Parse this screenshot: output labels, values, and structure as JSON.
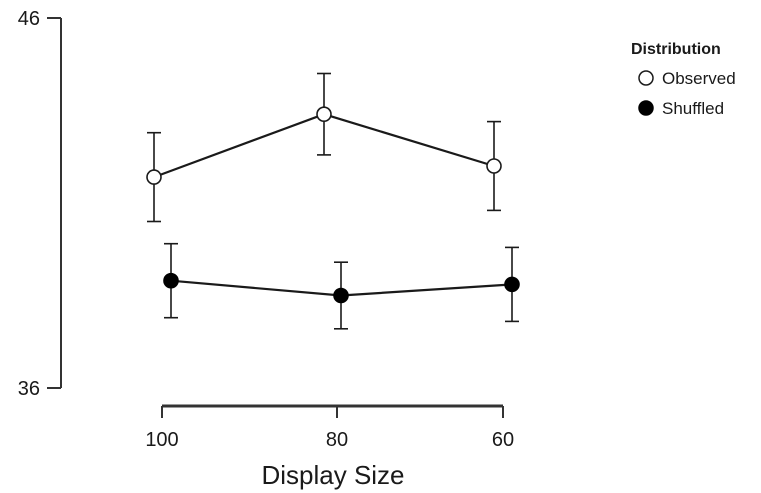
{
  "chart_data": {
    "type": "line",
    "title": "",
    "xlabel": "Display Size",
    "ylabel": "",
    "categories": [
      "100",
      "80",
      "60"
    ],
    "y_ticks": [
      "46",
      "36"
    ],
    "ylim": [
      36,
      46
    ],
    "legend": {
      "title": "Distribution",
      "placement": "top-right"
    },
    "series": [
      {
        "name": "Observed",
        "marker": "open-circle",
        "values": [
          41.7,
          43.4,
          42.0
        ],
        "error_low": [
          40.5,
          42.3,
          40.8
        ],
        "error_high": [
          42.9,
          44.5,
          43.2
        ]
      },
      {
        "name": "Shuffled",
        "marker": "filled-circle",
        "values": [
          38.9,
          38.5,
          38.8
        ],
        "error_low": [
          37.9,
          37.6,
          37.8
        ],
        "error_high": [
          39.9,
          39.4,
          39.8
        ]
      }
    ],
    "colors": {
      "line": "#1a1a1a",
      "axis": "#333333",
      "open_fill": "#ffffff",
      "filled": "#000000"
    }
  }
}
